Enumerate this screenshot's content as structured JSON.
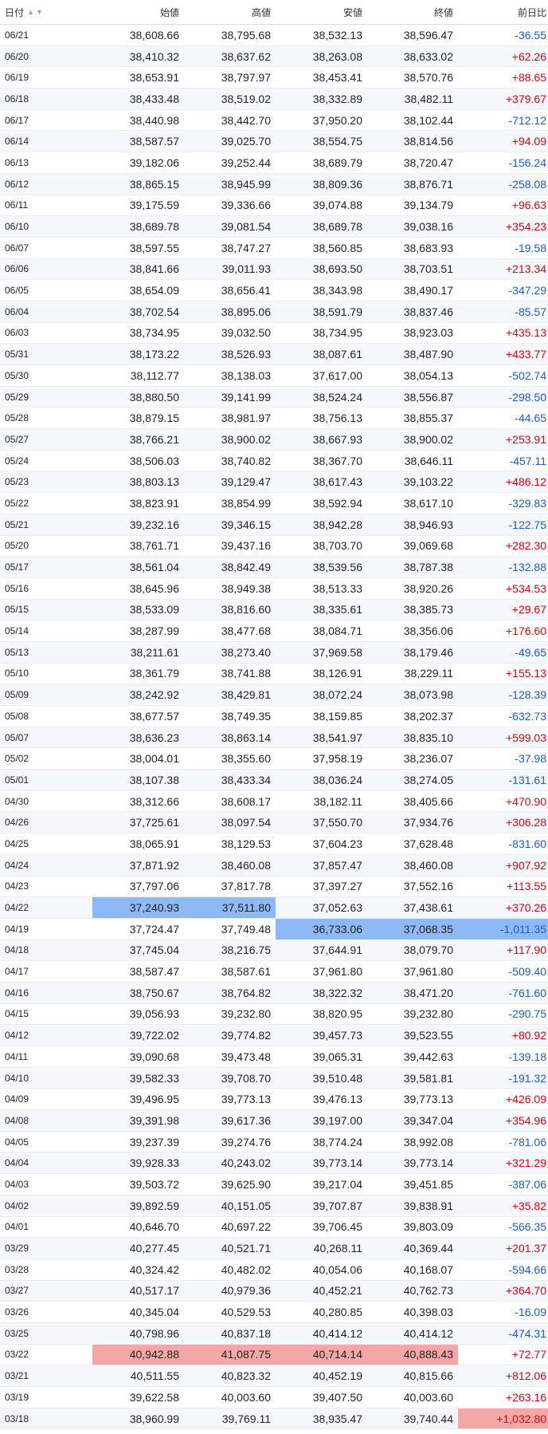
{
  "header": {
    "date": "日付",
    "open": "始値",
    "high": "高値",
    "low": "安値",
    "close": "終値",
    "change": "前日比"
  },
  "colors": {
    "positive": "#e8000b",
    "negative": "#1a5bd6",
    "highlight_blue": "#8fb9f5",
    "highlight_red": "#f4a7a7"
  },
  "rows": [
    {
      "date": "06/21",
      "open": "38,608.66",
      "high": "38,795.68",
      "low": "38,532.13",
      "close": "38,596.47",
      "change": "-36.55"
    },
    {
      "date": "06/20",
      "open": "38,410.32",
      "high": "38,637.62",
      "low": "38,263.08",
      "close": "38,633.02",
      "change": "+62.26"
    },
    {
      "date": "06/19",
      "open": "38,653.91",
      "high": "38,797.97",
      "low": "38,453.41",
      "close": "38,570.76",
      "change": "+88.65"
    },
    {
      "date": "06/18",
      "open": "38,433.48",
      "high": "38,519.02",
      "low": "38,332.89",
      "close": "38,482.11",
      "change": "+379.67"
    },
    {
      "date": "06/17",
      "open": "38,440.98",
      "high": "38,442.70",
      "low": "37,950.20",
      "close": "38,102.44",
      "change": "-712.12"
    },
    {
      "date": "06/14",
      "open": "38,587.57",
      "high": "39,025.70",
      "low": "38,554.75",
      "close": "38,814.56",
      "change": "+94.09"
    },
    {
      "date": "06/13",
      "open": "39,182.06",
      "high": "39,252.44",
      "low": "38,689.79",
      "close": "38,720.47",
      "change": "-156.24"
    },
    {
      "date": "06/12",
      "open": "38,865.15",
      "high": "38,945.99",
      "low": "38,809.36",
      "close": "38,876.71",
      "change": "-258.08"
    },
    {
      "date": "06/11",
      "open": "39,175.59",
      "high": "39,336.66",
      "low": "39,074.88",
      "close": "39,134.79",
      "change": "+96.63"
    },
    {
      "date": "06/10",
      "open": "38,689.78",
      "high": "39,081.54",
      "low": "38,689.78",
      "close": "39,038.16",
      "change": "+354.23"
    },
    {
      "date": "06/07",
      "open": "38,597.55",
      "high": "38,747.27",
      "low": "38,560.85",
      "close": "38,683.93",
      "change": "-19.58"
    },
    {
      "date": "06/06",
      "open": "38,841.66",
      "high": "39,011.93",
      "low": "38,693.50",
      "close": "38,703.51",
      "change": "+213.34"
    },
    {
      "date": "06/05",
      "open": "38,654.09",
      "high": "38,656.41",
      "low": "38,343.98",
      "close": "38,490.17",
      "change": "-347.29"
    },
    {
      "date": "06/04",
      "open": "38,702.54",
      "high": "38,895.06",
      "low": "38,591.79",
      "close": "38,837.46",
      "change": "-85.57"
    },
    {
      "date": "06/03",
      "open": "38,734.95",
      "high": "39,032.50",
      "low": "38,734.95",
      "close": "38,923.03",
      "change": "+435.13"
    },
    {
      "date": "05/31",
      "open": "38,173.22",
      "high": "38,526.93",
      "low": "38,087.61",
      "close": "38,487.90",
      "change": "+433.77"
    },
    {
      "date": "05/30",
      "open": "38,112.77",
      "high": "38,138.03",
      "low": "37,617.00",
      "close": "38,054.13",
      "change": "-502.74"
    },
    {
      "date": "05/29",
      "open": "38,880.50",
      "high": "39,141.99",
      "low": "38,524.24",
      "close": "38,556.87",
      "change": "-298.50"
    },
    {
      "date": "05/28",
      "open": "38,879.15",
      "high": "38,981.97",
      "low": "38,756.13",
      "close": "38,855.37",
      "change": "-44.65"
    },
    {
      "date": "05/27",
      "open": "38,766.21",
      "high": "38,900.02",
      "low": "38,667.93",
      "close": "38,900.02",
      "change": "+253.91"
    },
    {
      "date": "05/24",
      "open": "38,506.03",
      "high": "38,740.82",
      "low": "38,367.70",
      "close": "38,646.11",
      "change": "-457.11"
    },
    {
      "date": "05/23",
      "open": "38,803.13",
      "high": "39,129.47",
      "low": "38,617.43",
      "close": "39,103.22",
      "change": "+486.12"
    },
    {
      "date": "05/22",
      "open": "38,823.91",
      "high": "38,854.99",
      "low": "38,592.94",
      "close": "38,617.10",
      "change": "-329.83"
    },
    {
      "date": "05/21",
      "open": "39,232.16",
      "high": "39,346.15",
      "low": "38,942.28",
      "close": "38,946.93",
      "change": "-122.75"
    },
    {
      "date": "05/20",
      "open": "38,761.71",
      "high": "39,437.16",
      "low": "38,703.70",
      "close": "39,069.68",
      "change": "+282.30"
    },
    {
      "date": "05/17",
      "open": "38,561.04",
      "high": "38,842.49",
      "low": "38,539.56",
      "close": "38,787.38",
      "change": "-132.88"
    },
    {
      "date": "05/16",
      "open": "38,645.96",
      "high": "38,949.38",
      "low": "38,513.33",
      "close": "38,920.26",
      "change": "+534.53"
    },
    {
      "date": "05/15",
      "open": "38,533.09",
      "high": "38,816.60",
      "low": "38,335.61",
      "close": "38,385.73",
      "change": "+29.67"
    },
    {
      "date": "05/14",
      "open": "38,287.99",
      "high": "38,477.68",
      "low": "38,084.71",
      "close": "38,356.06",
      "change": "+176.60"
    },
    {
      "date": "05/13",
      "open": "38,211.61",
      "high": "38,273.40",
      "low": "37,969.58",
      "close": "38,179.46",
      "change": "-49.65"
    },
    {
      "date": "05/10",
      "open": "38,361.79",
      "high": "38,741.88",
      "low": "38,126.91",
      "close": "38,229.11",
      "change": "+155.13"
    },
    {
      "date": "05/09",
      "open": "38,242.92",
      "high": "38,429.81",
      "low": "38,072.24",
      "close": "38,073.98",
      "change": "-128.39"
    },
    {
      "date": "05/08",
      "open": "38,677.57",
      "high": "38,749.35",
      "low": "38,159.85",
      "close": "38,202.37",
      "change": "-632.73"
    },
    {
      "date": "05/07",
      "open": "38,636.23",
      "high": "38,863.14",
      "low": "38,541.97",
      "close": "38,835.10",
      "change": "+599.03"
    },
    {
      "date": "05/02",
      "open": "38,004.01",
      "high": "38,355.60",
      "low": "37,958.19",
      "close": "38,236.07",
      "change": "-37.98"
    },
    {
      "date": "05/01",
      "open": "38,107.38",
      "high": "38,433.34",
      "low": "38,036.24",
      "close": "38,274.05",
      "change": "-131.61"
    },
    {
      "date": "04/30",
      "open": "38,312.66",
      "high": "38,608.17",
      "low": "38,182.11",
      "close": "38,405.66",
      "change": "+470.90"
    },
    {
      "date": "04/26",
      "open": "37,725.61",
      "high": "38,097.54",
      "low": "37,550.70",
      "close": "37,934.76",
      "change": "+306.28"
    },
    {
      "date": "04/25",
      "open": "38,065.91",
      "high": "38,129.53",
      "low": "37,604.23",
      "close": "37,628.48",
      "change": "-831.60"
    },
    {
      "date": "04/24",
      "open": "37,871.92",
      "high": "38,460.08",
      "low": "37,857.47",
      "close": "38,460.08",
      "change": "+907.92"
    },
    {
      "date": "04/23",
      "open": "37,797.06",
      "high": "37,817.78",
      "low": "37,397.27",
      "close": "37,552.16",
      "change": "+113.55"
    },
    {
      "date": "04/22",
      "open": "37,240.93",
      "high": "37,511.80",
      "low": "37,052.63",
      "close": "37,438.61",
      "change": "+370.26",
      "hl": [
        "open",
        "high"
      ],
      "hlc": "blue"
    },
    {
      "date": "04/19",
      "open": "37,724.47",
      "high": "37,749.48",
      "low": "36,733.06",
      "close": "37,068.35",
      "change": "-1,011.35",
      "hl": [
        "low",
        "close",
        "change"
      ],
      "hlc": "blue"
    },
    {
      "date": "04/18",
      "open": "37,745.04",
      "high": "38,216.75",
      "low": "37,644.91",
      "close": "38,079.70",
      "change": "+117.90"
    },
    {
      "date": "04/17",
      "open": "38,587.47",
      "high": "38,587.61",
      "low": "37,961.80",
      "close": "37,961.80",
      "change": "-509.40"
    },
    {
      "date": "04/16",
      "open": "38,750.67",
      "high": "38,764.82",
      "low": "38,322.32",
      "close": "38,471.20",
      "change": "-761.60"
    },
    {
      "date": "04/15",
      "open": "39,056.93",
      "high": "39,232.80",
      "low": "38,820.95",
      "close": "39,232.80",
      "change": "-290.75"
    },
    {
      "date": "04/12",
      "open": "39,722.02",
      "high": "39,774.82",
      "low": "39,457.73",
      "close": "39,523.55",
      "change": "+80.92"
    },
    {
      "date": "04/11",
      "open": "39,090.68",
      "high": "39,473.48",
      "low": "39,065.31",
      "close": "39,442.63",
      "change": "-139.18"
    },
    {
      "date": "04/10",
      "open": "39,582.33",
      "high": "39,708.70",
      "low": "39,510.48",
      "close": "39,581.81",
      "change": "-191.32"
    },
    {
      "date": "04/09",
      "open": "39,496.95",
      "high": "39,773.13",
      "low": "39,476.13",
      "close": "39,773.13",
      "change": "+426.09"
    },
    {
      "date": "04/08",
      "open": "39,391.98",
      "high": "39,617.36",
      "low": "39,197.00",
      "close": "39,347.04",
      "change": "+354.96"
    },
    {
      "date": "04/05",
      "open": "39,237.39",
      "high": "39,274.76",
      "low": "38,774.24",
      "close": "38,992.08",
      "change": "-781.06"
    },
    {
      "date": "04/04",
      "open": "39,928.33",
      "high": "40,243.02",
      "low": "39,773.14",
      "close": "39,773.14",
      "change": "+321.29"
    },
    {
      "date": "04/03",
      "open": "39,503.72",
      "high": "39,625.90",
      "low": "39,217.04",
      "close": "39,451.85",
      "change": "-387.06"
    },
    {
      "date": "04/02",
      "open": "39,892.59",
      "high": "40,151.05",
      "low": "39,707.87",
      "close": "39,838.91",
      "change": "+35.82"
    },
    {
      "date": "04/01",
      "open": "40,646.70",
      "high": "40,697.22",
      "low": "39,706.45",
      "close": "39,803.09",
      "change": "-566.35"
    },
    {
      "date": "03/29",
      "open": "40,277.45",
      "high": "40,521.71",
      "low": "40,268.11",
      "close": "40,369.44",
      "change": "+201.37"
    },
    {
      "date": "03/28",
      "open": "40,324.42",
      "high": "40,482.02",
      "low": "40,054.06",
      "close": "40,168.07",
      "change": "-594.66"
    },
    {
      "date": "03/27",
      "open": "40,517.17",
      "high": "40,979.36",
      "low": "40,452.21",
      "close": "40,762.73",
      "change": "+364.70"
    },
    {
      "date": "03/26",
      "open": "40,345.04",
      "high": "40,529.53",
      "low": "40,280.85",
      "close": "40,398.03",
      "change": "-16.09"
    },
    {
      "date": "03/25",
      "open": "40,798.96",
      "high": "40,837.18",
      "low": "40,414.12",
      "close": "40,414.12",
      "change": "-474.31"
    },
    {
      "date": "03/22",
      "open": "40,942.88",
      "high": "41,087.75",
      "low": "40,714.14",
      "close": "40,888.43",
      "change": "+72.77",
      "hl": [
        "open",
        "high",
        "low",
        "close"
      ],
      "hlc": "red"
    },
    {
      "date": "03/21",
      "open": "40,511.55",
      "high": "40,823.32",
      "low": "40,452.19",
      "close": "40,815.66",
      "change": "+812.06"
    },
    {
      "date": "03/19",
      "open": "39,622.58",
      "high": "40,003.60",
      "low": "39,407.50",
      "close": "40,003.60",
      "change": "+263.16"
    },
    {
      "date": "03/18",
      "open": "38,960.99",
      "high": "39,769.11",
      "low": "38,935.47",
      "close": "39,740.44",
      "change": "+1,032.80",
      "hl": [
        "change"
      ],
      "hlc": "red"
    }
  ]
}
